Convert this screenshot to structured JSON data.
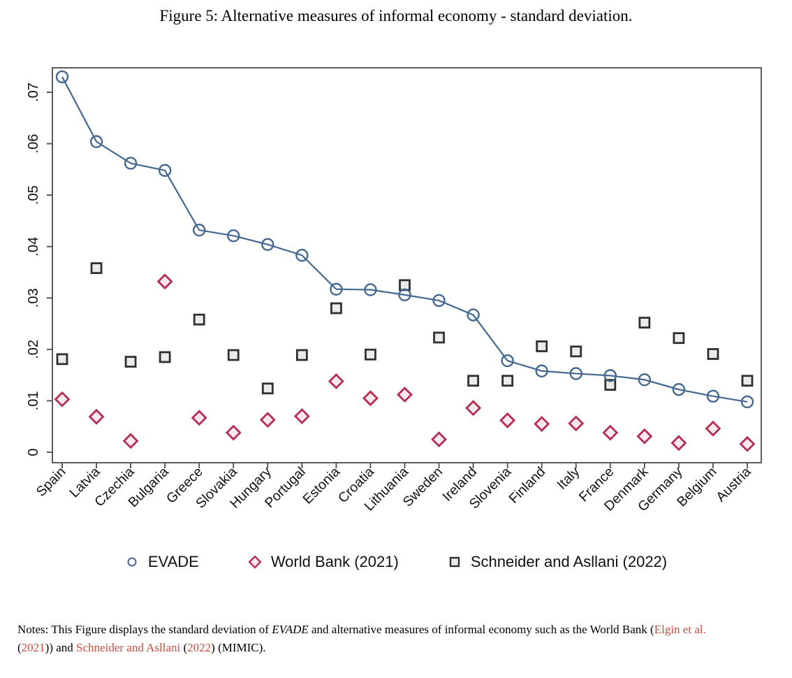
{
  "figure": {
    "title": "Figure 5: Alternative measures of informal economy - standard deviation."
  },
  "chart_data": {
    "type": "scatter",
    "title": "Figure 5: Alternative measures of informal economy - standard deviation.",
    "xlabel": "",
    "ylabel": "",
    "ylim": [
      0,
      0.07
    ],
    "grid": false,
    "legend_position": "bottom",
    "categories": [
      "Spain",
      "Latvia",
      "Czechia",
      "Bulgaria",
      "Greece",
      "Slovakia",
      "Hungary",
      "Portugal",
      "Estonia",
      "Croatia",
      "Lithuania",
      "Sweden",
      "Ireland",
      "Slovenia",
      "Finland",
      "Italy",
      "France",
      "Denmark",
      "Germany",
      "Belgium",
      "Austria"
    ],
    "yticks": [
      {
        "value": 0.0,
        "label": "0"
      },
      {
        "value": 0.01,
        "label": ".01"
      },
      {
        "value": 0.02,
        "label": ".02"
      },
      {
        "value": 0.03,
        "label": ".03"
      },
      {
        "value": 0.04,
        "label": ".04"
      },
      {
        "value": 0.05,
        "label": ".05"
      },
      {
        "value": 0.06,
        "label": ".06"
      },
      {
        "value": 0.07,
        "label": ".07"
      }
    ],
    "series": [
      {
        "name": "EVADE",
        "marker": "circle",
        "line": true,
        "color": "#44688f",
        "fill": "none",
        "values": [
          0.073,
          0.0604,
          0.0562,
          0.0548,
          0.0432,
          0.0421,
          0.0404,
          0.0383,
          0.0317,
          0.0316,
          0.0306,
          0.0295,
          0.0267,
          0.0178,
          0.0158,
          0.0153,
          0.0149,
          0.0141,
          0.0122,
          0.0109,
          0.0098
        ]
      },
      {
        "name": "World Bank (2021)",
        "marker": "diamond",
        "line": false,
        "color": "#b52d50",
        "fill": "#f9e9ee",
        "values": [
          0.0103,
          0.0069,
          0.0022,
          0.0332,
          0.0067,
          0.0038,
          0.0063,
          0.007,
          0.0138,
          0.0105,
          0.0112,
          0.0025,
          0.0086,
          0.0062,
          0.0055,
          0.0056,
          0.0038,
          0.0031,
          0.0018,
          0.0046,
          0.0016
        ]
      },
      {
        "name": "Schneider and Asllani (2022)",
        "marker": "square",
        "line": false,
        "color": "#303030",
        "fill": "#ebebeb",
        "values": [
          0.0181,
          0.0358,
          0.0176,
          0.0185,
          0.0258,
          0.0189,
          0.0124,
          0.0189,
          0.028,
          0.019,
          0.0325,
          0.0223,
          0.0139,
          0.0139,
          0.0206,
          0.0196,
          0.0131,
          0.0252,
          0.0222,
          0.0191,
          0.0139
        ]
      }
    ]
  },
  "notes": {
    "segments": [
      {
        "text": "Notes: This Figure displays the standard deviation of ",
        "style": "normal"
      },
      {
        "text": "EVADE",
        "style": "italic"
      },
      {
        "text": " and alternative measures of informal economy such as the World Bank (",
        "style": "normal"
      },
      {
        "text": "Elgin et al.",
        "style": "link"
      },
      {
        "text": "",
        "style": "break"
      },
      {
        "text": "(",
        "style": "normal"
      },
      {
        "text": "2021",
        "style": "link"
      },
      {
        "text": ")) and ",
        "style": "normal"
      },
      {
        "text": "Schneider and Asllani",
        "style": "link"
      },
      {
        "text": " (",
        "style": "normal"
      },
      {
        "text": "2022",
        "style": "link"
      },
      {
        "text": ") (MIMIC).",
        "style": "normal"
      }
    ]
  },
  "colors": {
    "evade_blue": "#44688f",
    "worldbank_crimson": "#b52d50",
    "worldbank_fill": "#f9e9ee",
    "schneider_gray": "#303030",
    "schneider_fill": "#ebebeb",
    "axis": "#4a4a4a",
    "citation_red": "#c24f3f"
  }
}
